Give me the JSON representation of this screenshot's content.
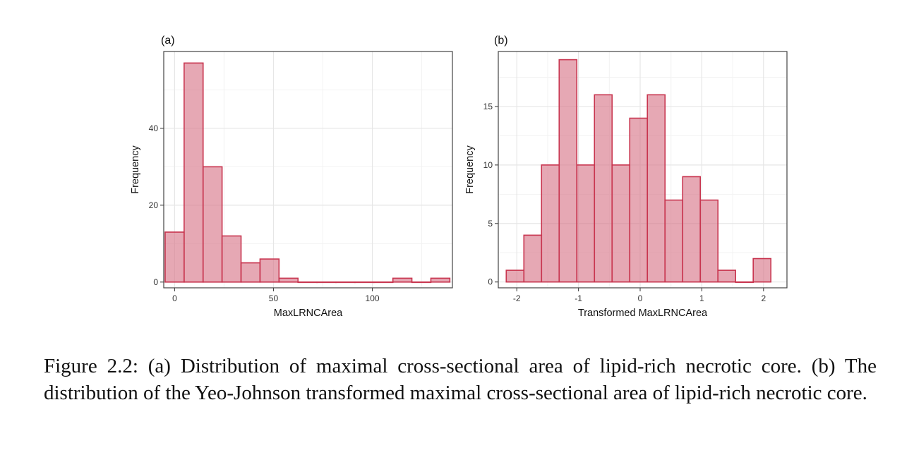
{
  "chart_data": [
    {
      "type": "bar",
      "panel_label": "(a)",
      "xlabel": "MaxLRNCArea",
      "ylabel": "Frequency",
      "bins": [
        {
          "center": 0,
          "count": 13
        },
        {
          "center": 9.6,
          "count": 57
        },
        {
          "center": 19.2,
          "count": 30
        },
        {
          "center": 28.8,
          "count": 12
        },
        {
          "center": 38.4,
          "count": 5
        },
        {
          "center": 48,
          "count": 6
        },
        {
          "center": 57.6,
          "count": 1
        },
        {
          "center": 67.2,
          "count": 0
        },
        {
          "center": 76.8,
          "count": 0
        },
        {
          "center": 86.4,
          "count": 0
        },
        {
          "center": 96,
          "count": 0
        },
        {
          "center": 105.6,
          "count": 0
        },
        {
          "center": 115.2,
          "count": 1
        },
        {
          "center": 124.8,
          "count": 0
        },
        {
          "center": 134.4,
          "count": 1
        }
      ],
      "bin_width": 9.6,
      "xlim": [
        -5.5,
        140.5
      ],
      "ylim": [
        -1.5,
        60
      ],
      "xticks": [
        0,
        50,
        100
      ],
      "xtick_labels": [
        "0",
        "50",
        "100"
      ],
      "yticks": [
        0,
        20,
        40
      ],
      "ytick_labels": [
        "0",
        "20",
        "40"
      ],
      "minor_x": [
        -25,
        25,
        75,
        125
      ],
      "minor_y": [
        10,
        30,
        50
      ],
      "grid": true
    },
    {
      "type": "bar",
      "panel_label": "(b)",
      "xlabel": "Transformed MaxLRNCArea",
      "ylabel": "Frequency",
      "bins": [
        {
          "center": -2.028,
          "count": 1
        },
        {
          "center": -1.742,
          "count": 4
        },
        {
          "center": -1.456,
          "count": 10
        },
        {
          "center": -1.17,
          "count": 19
        },
        {
          "center": -0.884,
          "count": 10
        },
        {
          "center": -0.598,
          "count": 16
        },
        {
          "center": -0.312,
          "count": 10
        },
        {
          "center": -0.026,
          "count": 14
        },
        {
          "center": 0.26,
          "count": 16
        },
        {
          "center": 0.546,
          "count": 7
        },
        {
          "center": 0.832,
          "count": 9
        },
        {
          "center": 1.118,
          "count": 7
        },
        {
          "center": 1.404,
          "count": 1
        },
        {
          "center": 1.69,
          "count": 0
        },
        {
          "center": 1.976,
          "count": 2
        }
      ],
      "bin_width": 0.286,
      "xlim": [
        -2.3,
        2.38
      ],
      "ylim": [
        -0.5,
        19.7
      ],
      "xticks": [
        -2,
        -1,
        0,
        1,
        2
      ],
      "xtick_labels": [
        "-2",
        "-1",
        "0",
        "1",
        "2"
      ],
      "yticks": [
        0,
        5,
        10,
        15
      ],
      "ytick_labels": [
        "0",
        "5",
        "10",
        "15"
      ],
      "minor_x": [
        -1.5,
        -0.5,
        0.5,
        1.5
      ],
      "minor_y": [
        2.5,
        7.5,
        12.5,
        17.5
      ],
      "grid": true
    }
  ],
  "style": {
    "bar_fill": "#d97a8c",
    "bar_fill_opacity": 0.65,
    "bar_stroke": "#c8354f",
    "grid_major": "#e6e6e6",
    "grid_minor": "#f2f2f2",
    "axis_color": "#444444",
    "text_color": "#333333"
  },
  "caption": "Figure 2.2: (a) Distribution of maximal cross-sectional area of lipid-rich necrotic core. (b) The distribution of the Yeo-Johnson transformed maximal cross-sectional area of lipid-rich necrotic core."
}
